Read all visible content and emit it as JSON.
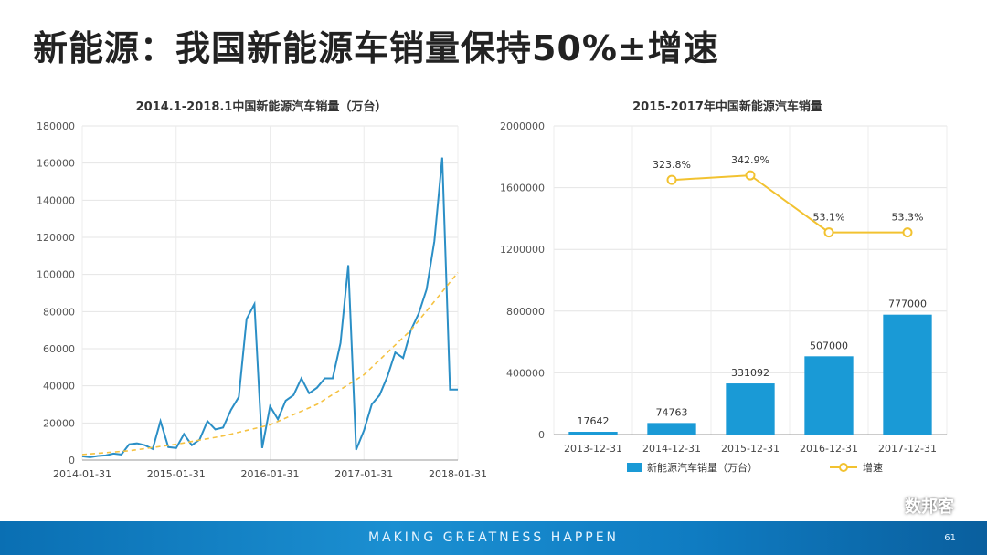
{
  "slide": {
    "title": "新能源：我国新能源车销量保持50%±增速",
    "footer_slogan": "MAKING GREATNESS HAPPEN",
    "page_number": "61",
    "watermark": "数邦客",
    "footer_color": "#0f7cc2"
  },
  "chart_data": [
    {
      "type": "line",
      "title": "2014.1-2018.1中国新能源汽车销量（万台）",
      "x_ticks": [
        "2014-01-31",
        "2015-01-31",
        "2016-01-31",
        "2017-01-31",
        "2018-01-31"
      ],
      "ylim": [
        0,
        180000
      ],
      "y_ticks": [
        0,
        20000,
        40000,
        60000,
        80000,
        100000,
        120000,
        140000,
        160000,
        180000
      ],
      "grid": true,
      "series": [
        {
          "color": "#2b8fc6",
          "x": [
            "2014-01",
            "2014-02",
            "2014-03",
            "2014-04",
            "2014-05",
            "2014-06",
            "2014-07",
            "2014-08",
            "2014-09",
            "2014-10",
            "2014-11",
            "2014-12",
            "2015-01",
            "2015-02",
            "2015-03",
            "2015-04",
            "2015-05",
            "2015-06",
            "2015-07",
            "2015-08",
            "2015-09",
            "2015-10",
            "2015-11",
            "2015-12",
            "2016-01",
            "2016-02",
            "2016-03",
            "2016-04",
            "2016-05",
            "2016-06",
            "2016-07",
            "2016-08",
            "2016-09",
            "2016-10",
            "2016-11",
            "2016-12",
            "2017-01",
            "2017-02",
            "2017-03",
            "2017-04",
            "2017-05",
            "2017-06",
            "2017-07",
            "2017-08",
            "2017-09",
            "2017-10",
            "2017-11",
            "2017-12",
            "2018-01"
          ],
          "y": [
            2000,
            1500,
            2200,
            2500,
            3500,
            3000,
            8500,
            9000,
            8000,
            6000,
            21000,
            7000,
            6500,
            14000,
            8000,
            11000,
            21000,
            16500,
            17500,
            27000,
            34000,
            76000,
            84000,
            6500,
            29000,
            22000,
            32000,
            35000,
            44000,
            36000,
            39000,
            44000,
            44000,
            63000,
            105000,
            5500,
            16000,
            30000,
            35000,
            45000,
            58000,
            55000,
            70000,
            79000,
            92000,
            118000,
            163000,
            38000,
            38000
          ]
        },
        {
          "color": "#f5c242",
          "style": "dashed",
          "x": [
            "2014-01",
            "2014-07",
            "2015-01",
            "2015-07",
            "2016-01",
            "2016-07",
            "2017-01",
            "2017-07",
            "2018-01"
          ],
          "y": [
            3000,
            5000,
            8500,
            13000,
            19000,
            30000,
            46000,
            70000,
            101000
          ]
        }
      ]
    },
    {
      "type": "bar",
      "title": "2015-2017年中国新能源汽车销量",
      "categories": [
        "2013-12-31",
        "2014-12-31",
        "2015-12-31",
        "2016-12-31",
        "2017-12-31"
      ],
      "ylim": [
        0,
        2000000
      ],
      "y_ticks": [
        0,
        400000,
        800000,
        1200000,
        1600000,
        2000000
      ],
      "grid": true,
      "legend_position": "bottom",
      "series": [
        {
          "name": "新能源汽车销量（万台）",
          "type": "bar",
          "color": "#1a9ad6",
          "values": [
            17642,
            74763,
            331092,
            507000,
            777000
          ],
          "labels": [
            "17642",
            "74763",
            "331092",
            "507000",
            "777000"
          ]
        },
        {
          "name": "增速",
          "type": "line",
          "color": "#f2c230",
          "values": [
            null,
            1650000,
            1680000,
            1310000,
            1310000
          ],
          "labels": [
            "",
            "323.8%",
            "342.9%",
            "53.1%",
            "53.3%"
          ]
        }
      ]
    }
  ]
}
